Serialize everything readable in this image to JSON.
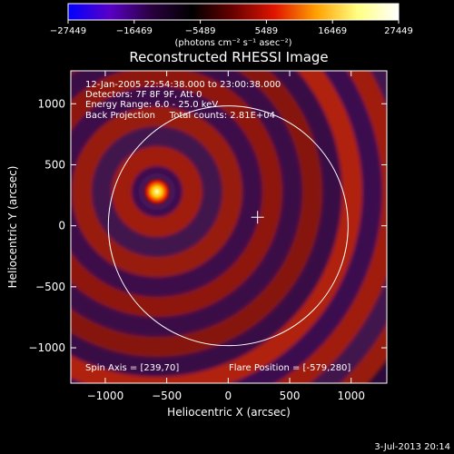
{
  "chart_data": {
    "type": "heatmap",
    "title": "Reconstructed RHESSI Image",
    "xlabel": "Heliocentric X (arcsec)",
    "ylabel": "Heliocentric Y (arcsec)",
    "xlim": [
      -1280,
      1290
    ],
    "ylim": [
      -1290,
      1270
    ],
    "x_ticks": [
      -1000,
      -500,
      0,
      500,
      1000
    ],
    "x_tick_labels": [
      "−1000",
      "−500",
      "0",
      "500",
      "1000"
    ],
    "y_ticks": [
      1000,
      500,
      0,
      -500,
      -1000
    ],
    "y_tick_labels": [
      "1000",
      "500",
      "0",
      "−500",
      "−1000"
    ],
    "colorbar": {
      "ticks": [
        -27449,
        -16469,
        -5489,
        5489,
        16469,
        27449
      ],
      "tick_labels": [
        "−27449",
        "−16469",
        "−5489",
        "5489",
        "16469",
        "27449"
      ],
      "range": [
        -27449,
        27449
      ],
      "unit_text": "(photons cm⁻² s⁻¹ asec⁻²)",
      "colors": [
        "#0000ff",
        "#5a00c8",
        "#2a0040",
        "#000000",
        "#6a0000",
        "#e01400",
        "#ffa000",
        "#ffff80",
        "#ffffff"
      ]
    },
    "info_lines": [
      "12-Jan-2005 22:54:38.000 to 23:00:38.000",
      "Detectors: 7F 8F 9F, Att 0",
      "Energy Range: 6.0 - 25.0 keV",
      "Back Projection     Total counts: 2.81E+04"
    ],
    "spin_axis": "Spin Axis = [239,70]",
    "flare_position_text": "Flare Position = [-579,280]",
    "source": {
      "x": -579,
      "y": 280
    },
    "spin_axis_point": {
      "x": 239,
      "y": 70
    },
    "solar_disk": {
      "center": [
        0,
        0
      ],
      "radius": 975
    },
    "timestamp": "3-Jul-2013 20:14"
  }
}
